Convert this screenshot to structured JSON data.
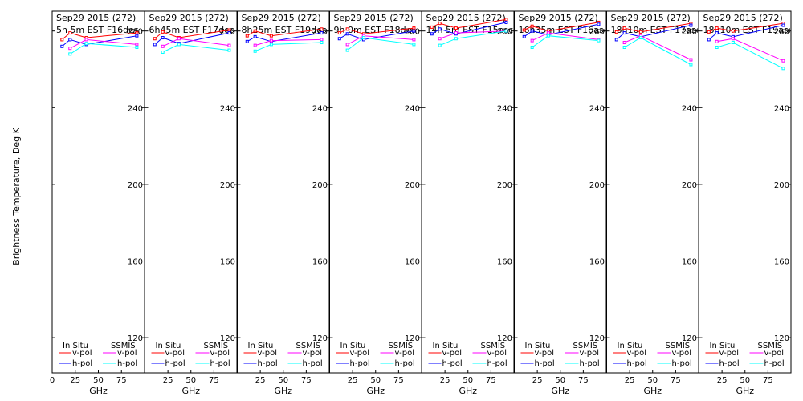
{
  "figure": {
    "ylabel": "Brightness Temperature, Deg K",
    "colors": {
      "insitu_v": "#ff0000",
      "insitu_h": "#0000ff",
      "ssmis_v": "#ff00ff",
      "ssmis_h": "#00ffff",
      "axes": "#000000",
      "background": "#ffffff"
    },
    "legend": {
      "insitu_header": "In Situ",
      "ssmis_header": "SSMIS",
      "vpol": "v-pol",
      "hpol": "h-pol"
    }
  },
  "chart_data": [
    {
      "type": "line",
      "date": "Sep29 2015 (272)",
      "time": "5h 5m EST F16des",
      "xlabel": "GHz",
      "xlim": [
        0,
        100
      ],
      "ylim": [
        110,
        292
      ],
      "x_ticks": [
        "0",
        "25",
        "50",
        "75"
      ],
      "y_ticks": [
        120,
        160,
        200,
        240,
        280
      ],
      "series": [
        {
          "name": "In Situ v-pol",
          "x": [
            10.7,
            19.35,
            37,
            91.65
          ],
          "y": [
            275.5,
            279,
            276.5,
            279
          ]
        },
        {
          "name": "In Situ h-pol",
          "x": [
            10.7,
            19.35,
            37,
            91.65
          ],
          "y": [
            272,
            275.5,
            273,
            277.5
          ]
        },
        {
          "name": "SSMIS v-pol",
          "x": [
            19.35,
            37,
            91.65
          ],
          "y": [
            271,
            275.5,
            273
          ]
        },
        {
          "name": "SSMIS h-pol",
          "x": [
            19.35,
            37,
            91.65
          ],
          "y": [
            268,
            273.5,
            271.5
          ]
        }
      ]
    },
    {
      "type": "line",
      "date": "Sep29 2015 (272)",
      "time": "6h45m EST F17des",
      "xlabel": "GHz",
      "xlim": [
        0,
        100
      ],
      "ylim": [
        110,
        292
      ],
      "x_ticks": [
        "25",
        "50",
        "75"
      ],
      "y_ticks": [
        120,
        160,
        200,
        240,
        280
      ],
      "series": [
        {
          "name": "In Situ v-pol",
          "x": [
            10.7,
            19.35,
            37,
            91.65
          ],
          "y": [
            276,
            279.5,
            276.5,
            280.5
          ]
        },
        {
          "name": "In Situ h-pol",
          "x": [
            10.7,
            19.35,
            37,
            91.65
          ],
          "y": [
            273,
            276.5,
            273.5,
            279
          ]
        },
        {
          "name": "SSMIS v-pol",
          "x": [
            19.35,
            37,
            91.65
          ],
          "y": [
            272,
            276,
            272.5
          ]
        },
        {
          "name": "SSMIS h-pol",
          "x": [
            19.35,
            37,
            91.65
          ],
          "y": [
            269,
            273,
            270
          ]
        }
      ]
    },
    {
      "type": "line",
      "date": "Sep29 2015 (272)",
      "time": "8h25m EST F19des",
      "xlabel": "GHz",
      "xlim": [
        0,
        100
      ],
      "ylim": [
        110,
        292
      ],
      "x_ticks": [
        "25",
        "50",
        "75"
      ],
      "y_ticks": [
        120,
        160,
        200,
        240,
        280
      ],
      "series": [
        {
          "name": "In Situ v-pol",
          "x": [
            10.7,
            19.35,
            37,
            91.65
          ],
          "y": [
            277.5,
            280,
            277.5,
            281
          ]
        },
        {
          "name": "In Situ h-pol",
          "x": [
            10.7,
            19.35,
            37,
            91.65
          ],
          "y": [
            274.5,
            277,
            274.5,
            279
          ]
        },
        {
          "name": "SSMIS v-pol",
          "x": [
            19.35,
            37,
            91.65
          ],
          "y": [
            272.5,
            275,
            275.5
          ]
        },
        {
          "name": "SSMIS h-pol",
          "x": [
            19.35,
            37,
            91.65
          ],
          "y": [
            269.5,
            273,
            274
          ]
        }
      ]
    },
    {
      "type": "line",
      "date": "Sep29 2015 (272)",
      "time": "9h 0m EST F18des",
      "xlabel": "GHz",
      "xlim": [
        0,
        100
      ],
      "ylim": [
        110,
        292
      ],
      "x_ticks": [
        "25",
        "50",
        "75"
      ],
      "y_ticks": [
        120,
        160,
        200,
        240,
        280
      ],
      "series": [
        {
          "name": "In Situ v-pol",
          "x": [
            10.7,
            19.35,
            37,
            91.65
          ],
          "y": [
            279,
            281,
            278.5,
            281.5
          ]
        },
        {
          "name": "In Situ h-pol",
          "x": [
            10.7,
            19.35,
            37,
            91.65
          ],
          "y": [
            276,
            278.5,
            275.5,
            280
          ]
        },
        {
          "name": "SSMIS v-pol",
          "x": [
            19.35,
            37,
            91.65
          ],
          "y": [
            273,
            277.5,
            275.5
          ]
        },
        {
          "name": "SSMIS h-pol",
          "x": [
            19.35,
            37,
            91.65
          ],
          "y": [
            270,
            276.5,
            273
          ]
        }
      ]
    },
    {
      "type": "line",
      "date": "Sep29 2015 (272)",
      "time": "14h 5m EST F15asc",
      "xlabel": "GHz",
      "xlim": [
        0,
        100
      ],
      "ylim": [
        110,
        292
      ],
      "x_ticks": [
        "25",
        "50",
        "75"
      ],
      "y_ticks": [
        120,
        160,
        200,
        240,
        280
      ],
      "series": [
        {
          "name": "In Situ v-pol",
          "x": [
            10.7,
            19.35,
            37,
            91.65
          ],
          "y": [
            282,
            284,
            281.5,
            286
          ]
        },
        {
          "name": "In Situ h-pol",
          "x": [
            10.7,
            19.35,
            37,
            91.65
          ],
          "y": [
            278.5,
            281,
            278.5,
            284.5
          ]
        },
        {
          "name": "SSMIS v-pol",
          "x": [
            19.35,
            37,
            91.65
          ],
          "y": [
            276,
            279,
            280
          ]
        },
        {
          "name": "SSMIS h-pol",
          "x": [
            19.35,
            37,
            91.65
          ],
          "y": [
            272.5,
            276,
            280
          ]
        }
      ]
    },
    {
      "type": "line",
      "date": "Sep29 2015 (272)",
      "time": "16h35m EST F16asc",
      "xlabel": "GHz",
      "xlim": [
        0,
        100
      ],
      "ylim": [
        110,
        292
      ],
      "x_ticks": [
        "25",
        "50",
        "75"
      ],
      "y_ticks": [
        120,
        160,
        200,
        240,
        280
      ],
      "series": [
        {
          "name": "In Situ v-pol",
          "x": [
            10.7,
            19.35,
            37,
            91.65
          ],
          "y": [
            280.5,
            282.5,
            280,
            284.5
          ]
        },
        {
          "name": "In Situ h-pol",
          "x": [
            10.7,
            19.35,
            37,
            91.65
          ],
          "y": [
            277,
            280,
            278,
            283.5
          ]
        },
        {
          "name": "SSMIS v-pol",
          "x": [
            19.35,
            37,
            91.65
          ],
          "y": [
            275,
            279,
            275.5
          ]
        },
        {
          "name": "SSMIS h-pol",
          "x": [
            19.35,
            37,
            91.65
          ],
          "y": [
            271.5,
            277.5,
            275
          ]
        }
      ]
    },
    {
      "type": "line",
      "date": "Sep29 2015 (272)",
      "time": "18h10m EST F17asc",
      "xlabel": "GHz",
      "xlim": [
        0,
        100
      ],
      "ylim": [
        110,
        292
      ],
      "x_ticks": [
        "25",
        "50",
        "75"
      ],
      "y_ticks": [
        120,
        160,
        200,
        240,
        280
      ],
      "series": [
        {
          "name": "In Situ v-pol",
          "x": [
            10.7,
            19.35,
            37,
            91.65
          ],
          "y": [
            279.5,
            281.5,
            279.5,
            284
          ]
        },
        {
          "name": "In Situ h-pol",
          "x": [
            10.7,
            19.35,
            37,
            91.65
          ],
          "y": [
            275.5,
            279,
            277,
            283
          ]
        },
        {
          "name": "SSMIS v-pol",
          "x": [
            19.35,
            37,
            91.65
          ],
          "y": [
            274,
            277.5,
            265
          ]
        },
        {
          "name": "SSMIS h-pol",
          "x": [
            19.35,
            37,
            91.65
          ],
          "y": [
            271.5,
            276.5,
            262.5
          ]
        }
      ]
    },
    {
      "type": "line",
      "date": "Sep29 2015 (272)",
      "time": "18h10m EST F19asc",
      "xlabel": "GHz",
      "xlim": [
        0,
        100
      ],
      "ylim": [
        110,
        292
      ],
      "x_ticks": [
        "25",
        "50",
        "75"
      ],
      "y_ticks": [
        120,
        160,
        200,
        240,
        280
      ],
      "series": [
        {
          "name": "In Situ v-pol",
          "x": [
            10.7,
            19.35,
            37,
            91.65
          ],
          "y": [
            279.5,
            281.5,
            280,
            284
          ]
        },
        {
          "name": "In Situ h-pol",
          "x": [
            10.7,
            19.35,
            37,
            91.65
          ],
          "y": [
            275.5,
            279,
            277,
            283
          ]
        },
        {
          "name": "SSMIS v-pol",
          "x": [
            19.35,
            37,
            91.65
          ],
          "y": [
            274.5,
            276,
            264.5
          ]
        },
        {
          "name": "SSMIS h-pol",
          "x": [
            19.35,
            37,
            91.65
          ],
          "y": [
            271.5,
            274,
            260.5
          ]
        }
      ]
    }
  ]
}
